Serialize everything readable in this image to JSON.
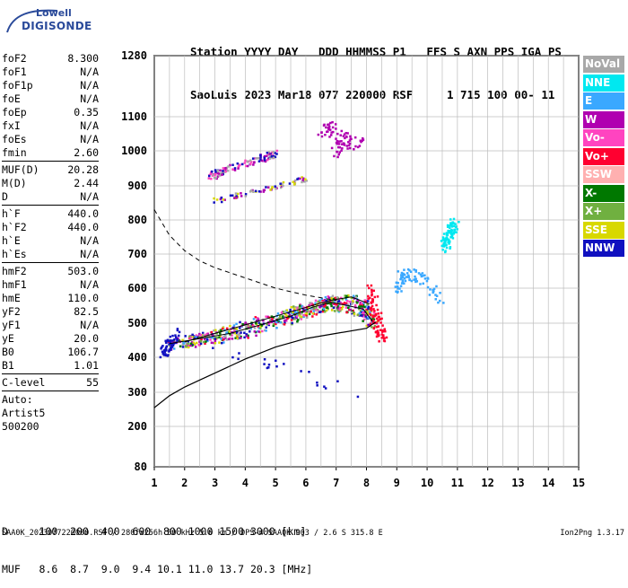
{
  "logo": {
    "line1": "Lowell",
    "line2": "DIGISONDE"
  },
  "header": {
    "labels": "Station YYYY DAY   DDD HHMMSS P1   FFS S AXN PPS IGA PS",
    "values": "SaoLuis 2023 Mar18 077 220000 RSF     1 715 100 00- 11"
  },
  "params": [
    {
      "k": "foF2",
      "v": "8.300"
    },
    {
      "k": "foF1",
      "v": "N/A"
    },
    {
      "k": "foF1p",
      "v": "N/A"
    },
    {
      "k": "foE",
      "v": "N/A"
    },
    {
      "k": "foEp",
      "v": "0.35"
    },
    {
      "k": "fxI",
      "v": "N/A"
    },
    {
      "k": "foEs",
      "v": "N/A"
    },
    {
      "k": "fmin",
      "v": "2.60"
    },
    {
      "sep": true
    },
    {
      "k": "MUF(D)",
      "v": "20.28"
    },
    {
      "k": "M(D)",
      "v": "2.44"
    },
    {
      "k": "D",
      "v": "N/A"
    },
    {
      "sep": true
    },
    {
      "k": "h`F",
      "v": "440.0"
    },
    {
      "k": "h`F2",
      "v": "440.0"
    },
    {
      "k": "h`E",
      "v": "N/A"
    },
    {
      "k": "h`Es",
      "v": "N/A"
    },
    {
      "sep": true
    },
    {
      "k": "hmF2",
      "v": "503.0"
    },
    {
      "k": "hmF1",
      "v": "N/A"
    },
    {
      "k": "hmE",
      "v": "110.0"
    },
    {
      "k": "yF2",
      "v": "82.5"
    },
    {
      "k": "yF1",
      "v": "N/A"
    },
    {
      "k": "yE",
      "v": "20.0"
    },
    {
      "k": "B0",
      "v": "106.7"
    },
    {
      "k": "B1",
      "v": "1.01"
    },
    {
      "sep": true
    },
    {
      "k": "C-level",
      "v": "55"
    },
    {
      "sep": true
    },
    {
      "k": "Auto:",
      "v": ""
    },
    {
      "k": "Artist5",
      "v": ""
    },
    {
      "k": "500200",
      "v": ""
    }
  ],
  "legend": [
    {
      "label": "NoVal",
      "color": "#a8a8a8"
    },
    {
      "label": "NNE",
      "color": "#00e8f0"
    },
    {
      "label": "E",
      "color": "#3aa8ff"
    },
    {
      "label": "W",
      "color": "#b000b0"
    },
    {
      "label": "Vo-",
      "color": "#ff44c0"
    },
    {
      "label": "Vo+",
      "color": "#ff0030"
    },
    {
      "label": "SSW",
      "color": "#ffb0b0"
    },
    {
      "label": "X-",
      "color": "#007800"
    },
    {
      "label": "X+",
      "color": "#70b040"
    },
    {
      "label": "SSE",
      "color": "#d8d800"
    },
    {
      "label": "NNW",
      "color": "#1010c0"
    }
  ],
  "bottom": {
    "line1": "D     100  200  400  600  800 1000 1500 3000 [km]",
    "line2": "MUF   8.6  8.7  9.0  9.4 10.1 11.0 13.7 20.3 [MHz]"
  },
  "footer": {
    "left": "SAA0K_2023077220000.RSF / 280fx256h 50 kHz 5.0 km / DPS-4 SAA0K 903 / 2.6 S 315.8 E",
    "right": "Ion2Png 1.3.17"
  },
  "chart_data": {
    "type": "scatter",
    "xlim": [
      1,
      15
    ],
    "xticks": [
      1,
      2,
      3,
      4,
      5,
      6,
      7,
      8,
      9,
      10,
      11,
      12,
      13,
      14,
      15
    ],
    "yticks": [
      80,
      200,
      300,
      400,
      500,
      600,
      700,
      800,
      900,
      1000,
      1100,
      1280
    ],
    "y_scale": "pseudo-log (virtual height, km)",
    "grid": true,
    "traces": {
      "ordinary_trace": {
        "x": [
          1.5,
          2.5,
          3.5,
          4.5,
          5.5,
          6.2,
          6.8,
          7.4,
          7.9,
          8.2
        ],
        "y": [
          440,
          455,
          470,
          495,
          520,
          545,
          560,
          550,
          540,
          505
        ]
      },
      "extraordinary_trace": {
        "x": [
          2.0,
          3.0,
          4.0,
          5.0,
          6.0,
          6.8,
          7.5,
          8.1
        ],
        "y": [
          445,
          470,
          495,
          520,
          545,
          565,
          575,
          555
        ]
      },
      "true_height_profile": {
        "x": [
          1.0,
          1.5,
          2.0,
          2.5,
          3.0,
          3.5,
          4.0,
          5.0,
          6.0,
          7.0,
          8.0,
          8.3
        ],
        "y": [
          255,
          290,
          315,
          335,
          355,
          375,
          395,
          430,
          455,
          470,
          485,
          503
        ]
      },
      "muf_curve_dashed": {
        "x": [
          1.0,
          1.5,
          2.0,
          2.5,
          3.0,
          3.5,
          4.0,
          5.0,
          6.0,
          7.0
        ],
        "y": [
          830,
          755,
          710,
          680,
          660,
          645,
          630,
          600,
          580,
          565
        ]
      },
      "f2_echoes_upper": {
        "x": [
          2.8,
          3.5,
          4.5,
          5.0
        ],
        "y": [
          930,
          955,
          980,
          995
        ]
      },
      "f2_echoes_upper2": {
        "x": [
          3.0,
          4.0,
          5.0,
          6.0
        ],
        "y": [
          860,
          880,
          900,
          925
        ]
      }
    },
    "series": [
      {
        "name": "E",
        "x": [
          9.0,
          9.2,
          9.5,
          10.0,
          10.5
        ],
        "y": [
          600,
          650,
          640,
          620,
          550
        ]
      },
      {
        "name": "NNE",
        "x": [
          10.5,
          10.7,
          10.9
        ],
        "y": [
          720,
          760,
          800
        ]
      },
      {
        "name": "W",
        "x": [
          6.5,
          6.8,
          7.0,
          7.2,
          7.5,
          7.8
        ],
        "y": [
          1050,
          1080,
          1000,
          1050,
          1020,
          1030
        ]
      },
      {
        "name": "Vo+",
        "x": [
          8.1,
          8.3,
          8.5
        ],
        "y": [
          600,
          520,
          460
        ]
      },
      {
        "name": "NNW",
        "x": [
          1.2,
          1.5,
          1.8,
          7.8
        ],
        "y": [
          420,
          440,
          470,
          300
        ]
      }
    ]
  }
}
